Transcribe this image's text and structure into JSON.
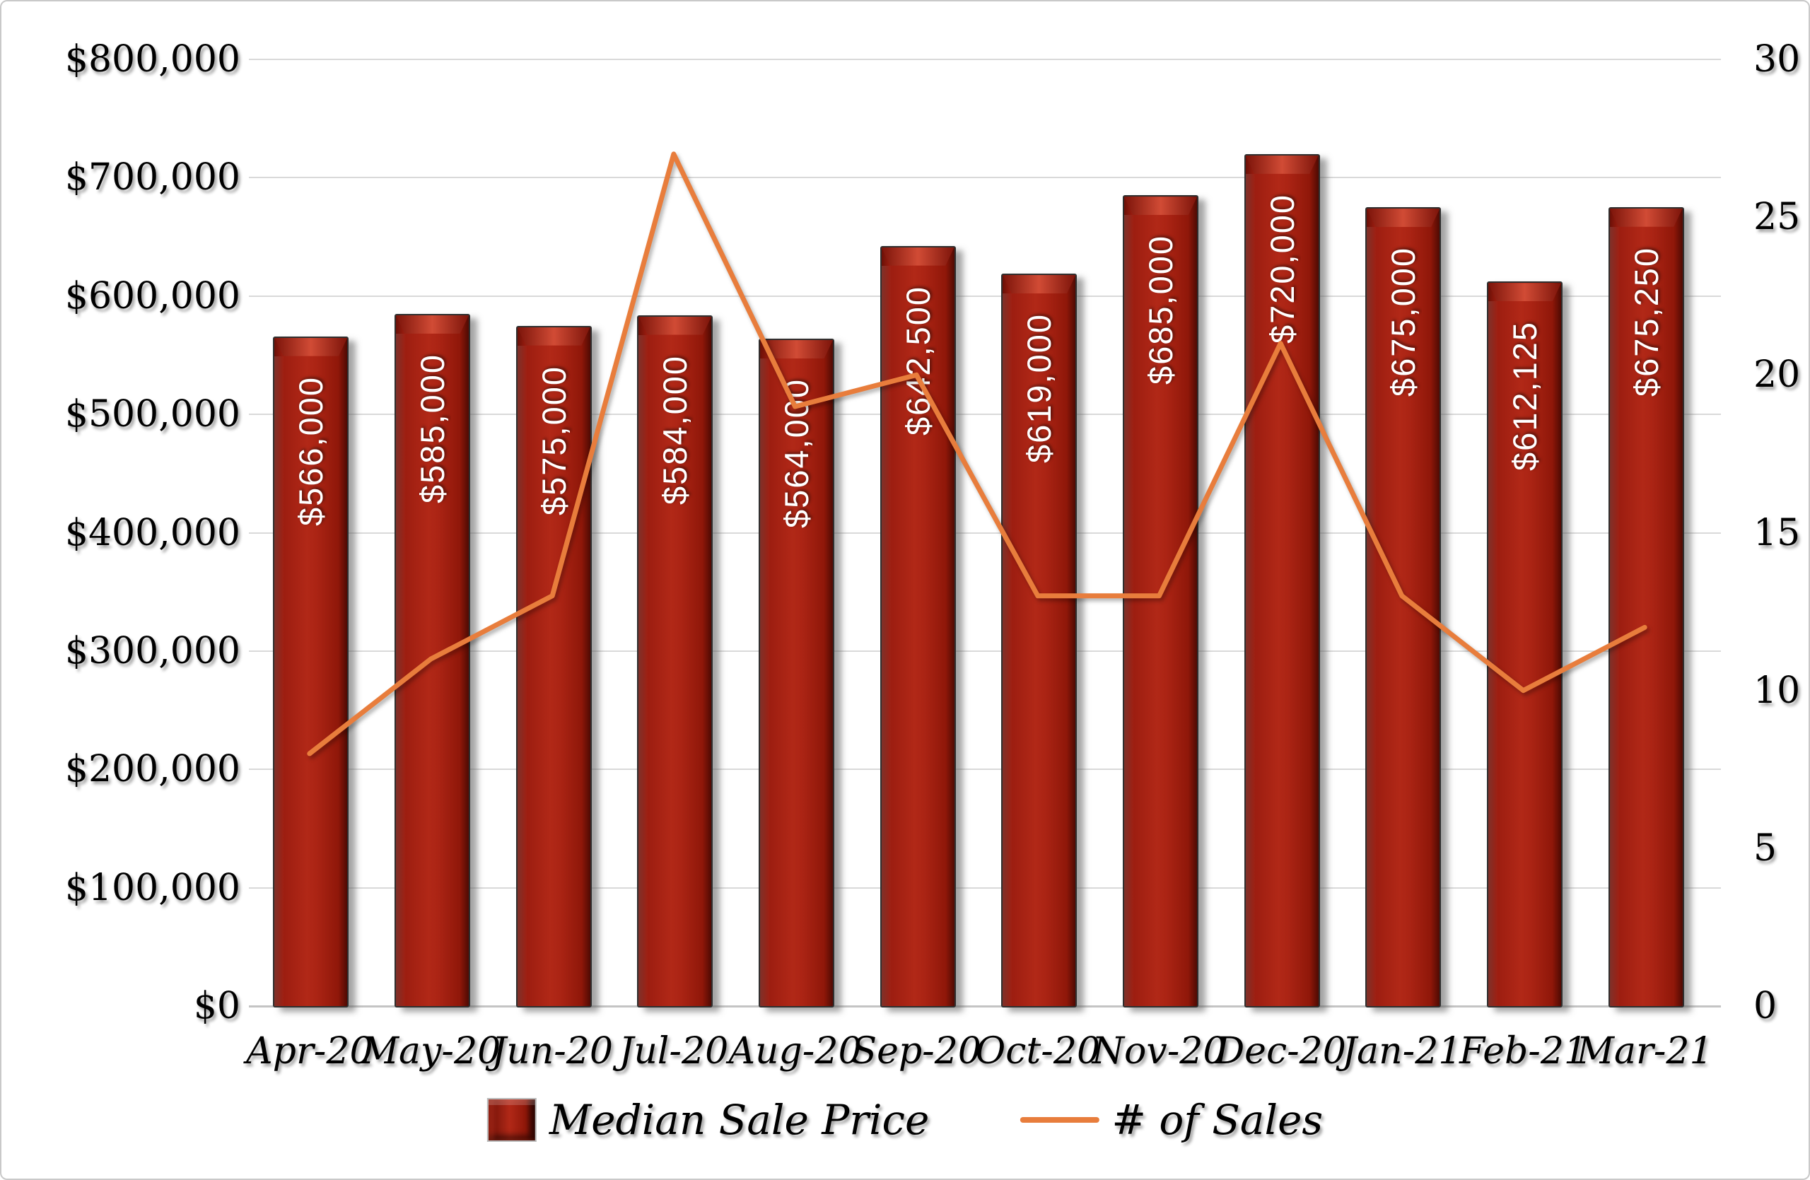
{
  "chart_data": {
    "type": "bar+line combo",
    "title": "",
    "categories": [
      "Apr-20",
      "May-20",
      "Jun-20",
      "Jul-20",
      "Aug-20",
      "Sep-20",
      "Oct-20",
      "Nov-20",
      "Dec-20",
      "Jan-21",
      "Feb-21",
      "Mar-21"
    ],
    "series": [
      {
        "name": "Median Sale Price",
        "type": "bar",
        "axis": "left",
        "values": [
          566000,
          585000,
          575000,
          584000,
          564000,
          642500,
          619000,
          685000,
          720000,
          675000,
          612125,
          675250
        ],
        "data_labels": [
          "$566,000",
          "$585,000",
          "$575,000",
          "$584,000",
          "$564,000",
          "$642,500",
          "$619,000",
          "$685,000",
          "$720,000",
          "$675,000",
          "$612,125",
          "$675,250"
        ],
        "color": "#A32014"
      },
      {
        "name": "# of Sales",
        "type": "line",
        "axis": "right",
        "values": [
          8,
          11,
          13,
          27,
          19,
          20,
          13,
          13,
          21,
          13,
          10,
          12
        ],
        "color": "#E87D3C"
      }
    ],
    "left_axis": {
      "min": 0,
      "max": 800000,
      "step": 100000,
      "tick_labels": [
        "$0",
        "$100,000",
        "$200,000",
        "$300,000",
        "$400,000",
        "$500,000",
        "$600,000",
        "$700,000",
        "$800,000"
      ]
    },
    "right_axis": {
      "min": 0,
      "max": 30,
      "step": 5,
      "tick_labels": [
        "0",
        "5",
        "10",
        "15",
        "20",
        "25",
        "30"
      ]
    },
    "grid": "horizontal major gridlines from left axis",
    "legend_position": "bottom-center",
    "colors": {
      "grid": "#d9d9d9",
      "line": "#E87D3C",
      "bar": "#A32014"
    }
  },
  "legend": {
    "bar_label": "Median Sale Price",
    "line_label": "# of Sales"
  }
}
